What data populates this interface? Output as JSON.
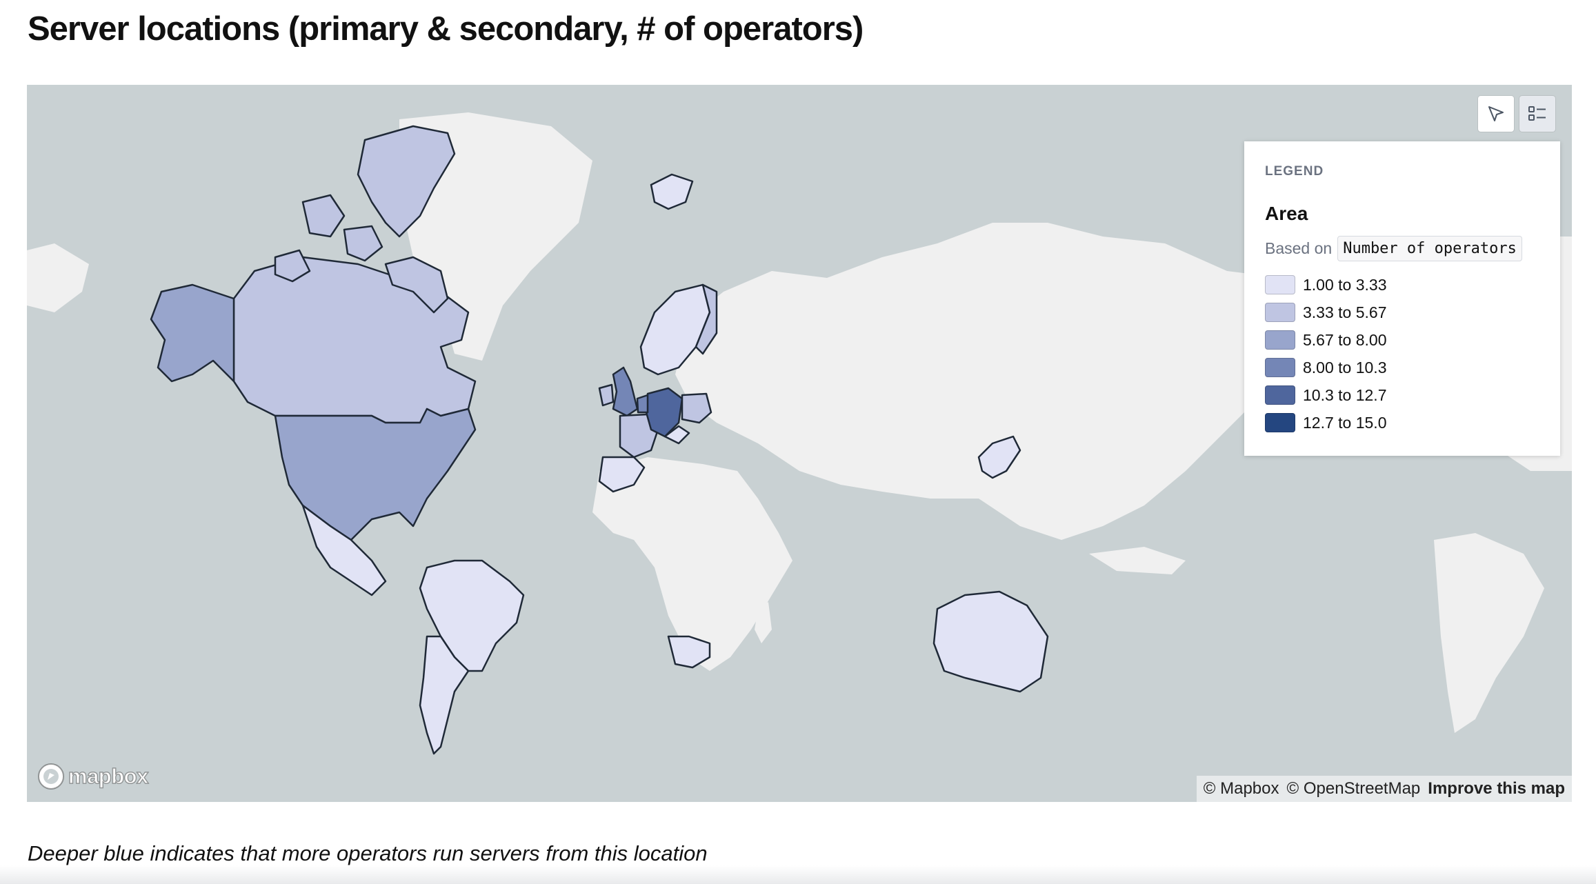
{
  "page": {
    "title": "Server locations (primary & secondary, # of operators)",
    "caption": "Deeper blue indicates that more operators run servers from this location"
  },
  "map": {
    "basemap": {
      "water": "#c9d1d3",
      "land": "#f0f0f0"
    },
    "controls": [
      {
        "name": "select-tool",
        "icon": "cursor-arrow-icon"
      },
      {
        "name": "legend-toggle",
        "icon": "legend-list-icon",
        "active": true
      }
    ],
    "logo": {
      "text": "mapbox",
      "icon": "mapbox-logo-icon"
    },
    "attribution": {
      "mapbox": "© Mapbox",
      "osm": "© OpenStreetMap",
      "improve": "Improve this map"
    }
  },
  "legend": {
    "heading": "LEGEND",
    "layer": "Area",
    "based_on_label": "Based on",
    "field": "Number of operators",
    "classes": [
      {
        "label": "1.00 to 3.33",
        "color": "#e1e3f5"
      },
      {
        "label": "3.33 to 5.67",
        "color": "#bfc5e2"
      },
      {
        "label": "5.67 to 8.00",
        "color": "#98a5cc"
      },
      {
        "label": "8.00 to 10.3",
        "color": "#7486b6"
      },
      {
        "label": "10.3 to 12.7",
        "color": "#4f669d"
      },
      {
        "label": "12.7 to 15.0",
        "color": "#244680"
      }
    ]
  },
  "regions": [
    {
      "name": "Canada",
      "class": 1
    },
    {
      "name": "Greenland-area islands",
      "class": 1
    },
    {
      "name": "United States",
      "class": 2
    },
    {
      "name": "Alaska",
      "class": 2
    },
    {
      "name": "Mexico",
      "class": 0
    },
    {
      "name": "Brazil / South America",
      "class": 0
    },
    {
      "name": "Chile / Argentina",
      "class": 0
    },
    {
      "name": "Iceland",
      "class": 0
    },
    {
      "name": "Norway / Sweden",
      "class": 0
    },
    {
      "name": "Finland",
      "class": 1
    },
    {
      "name": "United Kingdom",
      "class": 3
    },
    {
      "name": "Ireland",
      "class": 1
    },
    {
      "name": "France",
      "class": 1
    },
    {
      "name": "Spain / Portugal",
      "class": 0
    },
    {
      "name": "Germany",
      "class": 4
    },
    {
      "name": "Netherlands",
      "class": 3
    },
    {
      "name": "Poland",
      "class": 1
    },
    {
      "name": "Switzerland / Austria",
      "class": 0
    },
    {
      "name": "Japan",
      "class": 0
    },
    {
      "name": "Australia",
      "class": 0
    },
    {
      "name": "South Africa",
      "class": 0
    }
  ]
}
